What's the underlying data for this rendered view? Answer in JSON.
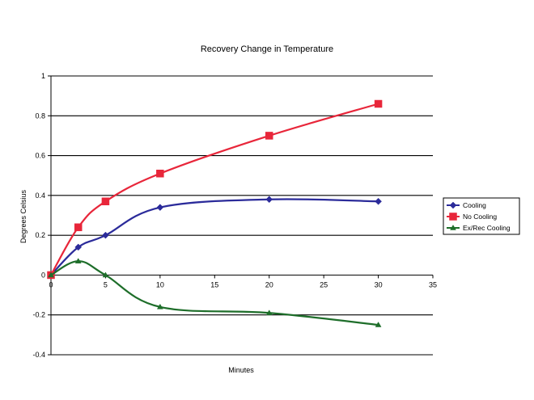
{
  "chart_data": {
    "type": "line",
    "title": "Recovery Change in Temperature",
    "xlabel": "Minutes",
    "ylabel": "Degrees Celsius",
    "xlim": [
      0,
      35
    ],
    "ylim": [
      -0.4,
      1
    ],
    "xticks": [
      0,
      5,
      10,
      15,
      20,
      25,
      30,
      35
    ],
    "yticks": [
      -0.4,
      -0.2,
      0,
      0.2,
      0.4,
      0.6,
      0.8,
      1
    ],
    "ytick_labels": [
      "-0.4",
      "-0.2",
      "0",
      "0.2",
      "0.4",
      "0.6",
      "0.8",
      "1"
    ],
    "grid": "horizontal",
    "legend": "right",
    "series": [
      {
        "name": "Cooling",
        "color": "#2b2b9a",
        "marker": "diamond",
        "x": [
          0,
          2.5,
          5,
          10,
          20,
          30
        ],
        "y": [
          0,
          0.14,
          0.2,
          0.34,
          0.38,
          0.37
        ]
      },
      {
        "name": "No Cooling",
        "color": "#e8263a",
        "marker": "square",
        "x": [
          0,
          2.5,
          5,
          10,
          20,
          30
        ],
        "y": [
          0,
          0.24,
          0.37,
          0.51,
          0.7,
          0.86
        ]
      },
      {
        "name": "Ex/Rec Cooling",
        "color": "#1e6e2a",
        "marker": "triangle",
        "x": [
          0,
          2.5,
          5,
          10,
          20,
          30
        ],
        "y": [
          0,
          0.07,
          0,
          -0.16,
          -0.19,
          -0.25
        ]
      }
    ]
  }
}
